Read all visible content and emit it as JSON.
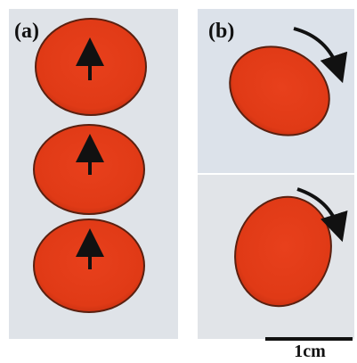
{
  "panels": [
    {
      "label": "(a)"
    },
    {
      "label": "(b)"
    }
  ],
  "scale_bar": {
    "label": "1cm"
  }
}
